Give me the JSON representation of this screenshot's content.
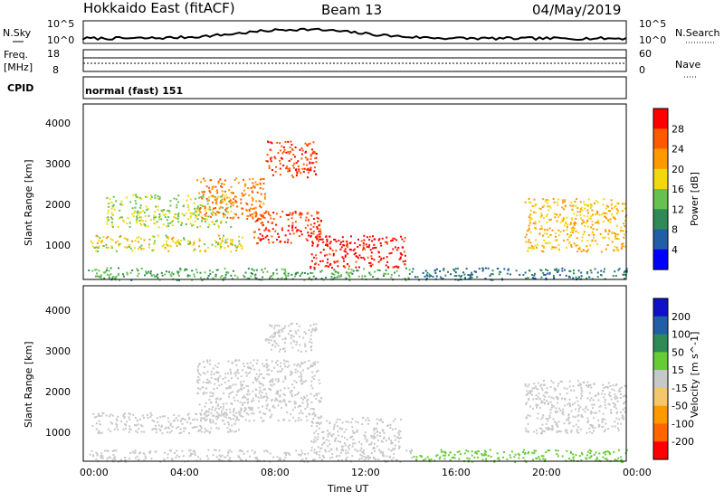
{
  "header": {
    "station": "Hokkaido East (fitACF)",
    "beam": "Beam 13",
    "date": "04/May/2019"
  },
  "noise_panel": {
    "left_label": "N.Sky",
    "right_label": "N.Search",
    "left_ticks": [
      "10^5",
      "10^0"
    ],
    "right_ticks": [
      "10^5",
      "10^0"
    ]
  },
  "freq_panel": {
    "left_label_1": "Freq.",
    "left_label_2": "[MHz]",
    "right_label": "Nave",
    "left_ticks": [
      "18",
      "8"
    ],
    "right_ticks": [
      "60",
      "0"
    ]
  },
  "cpid_panel": {
    "label": "CPID",
    "text": "normal (fast) 151"
  },
  "axes": {
    "ylabel": "Slant Range [km]",
    "xlabel": "Time UT",
    "yticks": [
      "1000",
      "2000",
      "3000",
      "4000"
    ],
    "xticks": [
      "00:00",
      "04:00",
      "08:00",
      "12:00",
      "16:00",
      "20:00",
      "00:00"
    ]
  },
  "chart_data": [
    {
      "type": "heatmap",
      "title": "",
      "xlabel": "Time UT",
      "ylabel": "Slant Range [km]",
      "quantity": "Power [dB]",
      "colorbar_ticks": [
        "28",
        "24",
        "20",
        "16",
        "12",
        "8",
        "4"
      ],
      "colorbar_range": [
        0,
        32
      ],
      "colors": [
        "#0000ff",
        "#205ea8",
        "#2e8b57",
        "#66c24f",
        "#f3d70f",
        "#ff9900",
        "#ff5a00",
        "#ff0000"
      ],
      "regions": [
        {
          "t": [
            0.2,
            14.5
          ],
          "r": [
            200,
            500
          ],
          "level": 12
        },
        {
          "t": [
            0.3,
            7.0
          ],
          "r": [
            900,
            1300
          ],
          "level": 18
        },
        {
          "t": [
            1.0,
            6.5
          ],
          "r": [
            1500,
            2300
          ],
          "level": 16
        },
        {
          "t": [
            5.0,
            8.0
          ],
          "r": [
            1700,
            2700
          ],
          "level": 24
        },
        {
          "t": [
            7.5,
            10.5
          ],
          "r": [
            1100,
            1900
          ],
          "level": 28
        },
        {
          "t": [
            10.0,
            14.2
          ],
          "r": [
            500,
            1300
          ],
          "level": 30
        },
        {
          "t": [
            8.0,
            10.3
          ],
          "r": [
            2700,
            3600
          ],
          "level": 28
        },
        {
          "t": [
            14.5,
            24.0
          ],
          "r": [
            200,
            500
          ],
          "level": 8
        },
        {
          "t": [
            19.5,
            24.0
          ],
          "r": [
            900,
            2200
          ],
          "level": 20
        }
      ]
    },
    {
      "type": "heatmap",
      "title": "",
      "xlabel": "Time UT",
      "ylabel": "Slant Range [km]",
      "quantity": "Velocity [m s^-1]",
      "colorbar_ticks": [
        "200",
        "100",
        "50",
        "15",
        "-15",
        "-50",
        "-100",
        "-200"
      ],
      "colorbar_range": [
        -250,
        250
      ],
      "colors": [
        "#ff0000",
        "#ff6600",
        "#ff9900",
        "#f3c76a",
        "#c8c8c8",
        "#66cc33",
        "#2e8b57",
        "#205ea8",
        "#1010c8"
      ],
      "regions": [
        {
          "t": [
            0.2,
            14.5
          ],
          "r": [
            200,
            500
          ],
          "level": 0
        },
        {
          "t": [
            0.3,
            7.0
          ],
          "r": [
            900,
            1400
          ],
          "level": 0
        },
        {
          "t": [
            5.0,
            10.5
          ],
          "r": [
            1200,
            2700
          ],
          "level": 0
        },
        {
          "t": [
            10.0,
            14.0
          ],
          "r": [
            500,
            1300
          ],
          "level": 0
        },
        {
          "t": [
            8.0,
            10.3
          ],
          "r": [
            2900,
            3600
          ],
          "level": 0
        },
        {
          "t": [
            14.5,
            24.0
          ],
          "r": [
            200,
            500
          ],
          "level": 40
        },
        {
          "t": [
            19.5,
            24.0
          ],
          "r": [
            900,
            2200
          ],
          "level": 0
        }
      ]
    }
  ]
}
